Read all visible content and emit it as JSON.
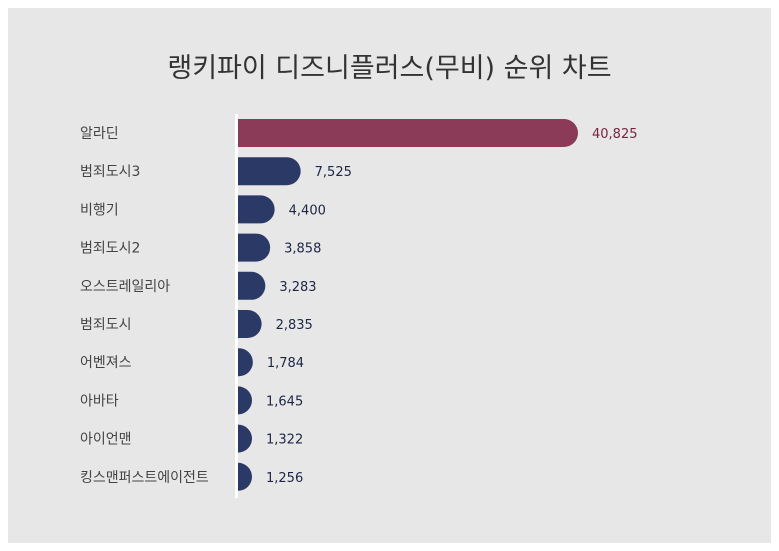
{
  "chart_data": {
    "type": "bar",
    "orientation": "horizontal",
    "title": "랭키파이 디즈니플러스(무비) 순위 차트",
    "categories": [
      "알라딘",
      "범죄도시3",
      "비행기",
      "범죄도시2",
      "오스트레일리아",
      "범죄도시",
      "어벤져스",
      "아바타",
      "아이언맨",
      "킹스맨퍼스트에이전트"
    ],
    "values": [
      40825,
      7525,
      4400,
      3858,
      3283,
      2835,
      1784,
      1645,
      1322,
      1256
    ],
    "value_labels": [
      "40,825",
      "7,525",
      "4,400",
      "3,858",
      "3,283",
      "2,835",
      "1,784",
      "1,645",
      "1,322",
      "1,256"
    ],
    "xlim": [
      0,
      40825
    ],
    "grid": false,
    "colors": {
      "highlight": "#8b3a58",
      "bar": "#2b3966",
      "highlight_label": "#7a2440",
      "bar_label": "#1d2647"
    }
  }
}
